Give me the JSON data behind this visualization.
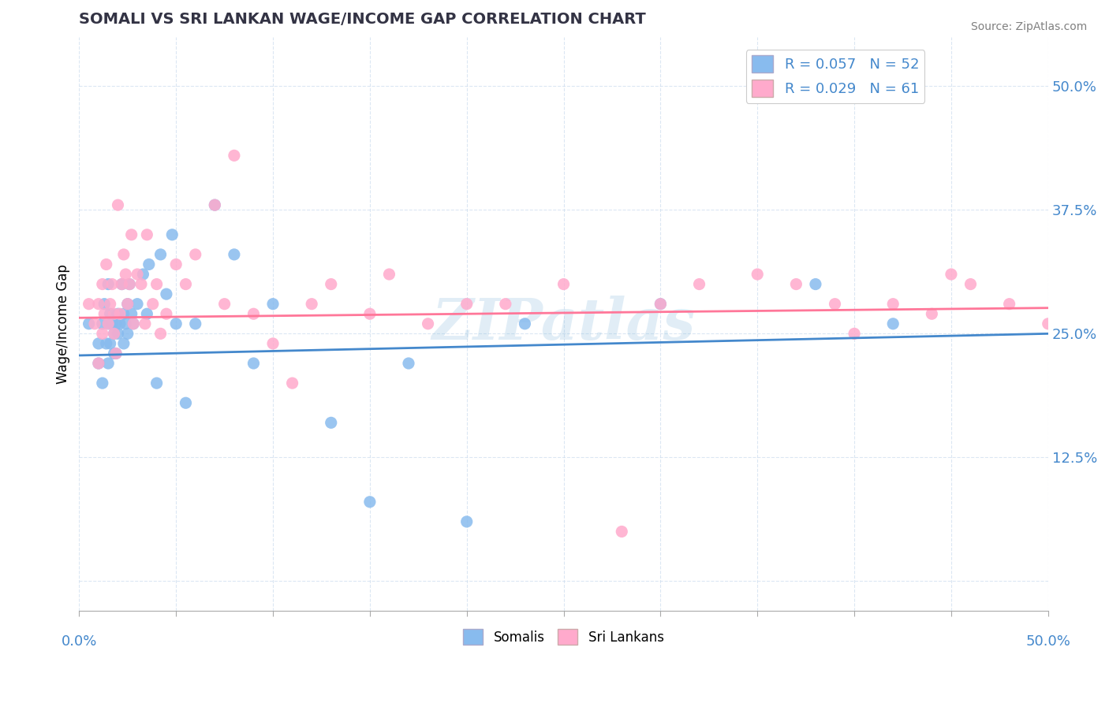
{
  "title": "SOMALI VS SRI LANKAN WAGE/INCOME GAP CORRELATION CHART",
  "source": "Source: ZipAtlas.com",
  "ylabel": "Wage/Income Gap",
  "ytick_labels": [
    "",
    "12.5%",
    "25.0%",
    "37.5%",
    "50.0%"
  ],
  "ytick_values": [
    0,
    0.125,
    0.25,
    0.375,
    0.5
  ],
  "xlim": [
    0.0,
    0.5
  ],
  "ylim": [
    -0.03,
    0.55
  ],
  "somali_color": "#88bbee",
  "srilanka_color": "#ffaacc",
  "somali_line_color": "#4488cc",
  "srilanka_line_color": "#ff7799",
  "watermark": "ZIPatlas",
  "legend_label1": "R = 0.057   N = 52",
  "legend_label2": "R = 0.029   N = 61",
  "somali_intercept": 0.228,
  "somali_slope": 0.044,
  "srilanka_intercept": 0.266,
  "srilanka_slope": 0.02,
  "somali_x": [
    0.005,
    0.01,
    0.01,
    0.012,
    0.012,
    0.013,
    0.014,
    0.015,
    0.015,
    0.015,
    0.016,
    0.016,
    0.017,
    0.018,
    0.018,
    0.019,
    0.019,
    0.02,
    0.02,
    0.021,
    0.022,
    0.023,
    0.023,
    0.024,
    0.025,
    0.025,
    0.026,
    0.027,
    0.028,
    0.03,
    0.033,
    0.035,
    0.036,
    0.04,
    0.042,
    0.045,
    0.048,
    0.05,
    0.055,
    0.06,
    0.07,
    0.08,
    0.09,
    0.1,
    0.13,
    0.15,
    0.17,
    0.2,
    0.23,
    0.3,
    0.38,
    0.42
  ],
  "somali_y": [
    0.26,
    0.24,
    0.22,
    0.2,
    0.26,
    0.28,
    0.24,
    0.26,
    0.22,
    0.3,
    0.24,
    0.27,
    0.26,
    0.23,
    0.25,
    0.26,
    0.23,
    0.27,
    0.25,
    0.26,
    0.3,
    0.24,
    0.27,
    0.26,
    0.28,
    0.25,
    0.3,
    0.27,
    0.26,
    0.28,
    0.31,
    0.27,
    0.32,
    0.2,
    0.33,
    0.29,
    0.35,
    0.26,
    0.18,
    0.26,
    0.38,
    0.33,
    0.22,
    0.28,
    0.16,
    0.08,
    0.22,
    0.06,
    0.26,
    0.28,
    0.3,
    0.26
  ],
  "srilanka_x": [
    0.005,
    0.008,
    0.01,
    0.01,
    0.012,
    0.012,
    0.013,
    0.014,
    0.015,
    0.016,
    0.017,
    0.018,
    0.018,
    0.019,
    0.02,
    0.021,
    0.022,
    0.023,
    0.024,
    0.025,
    0.026,
    0.027,
    0.028,
    0.03,
    0.032,
    0.034,
    0.035,
    0.038,
    0.04,
    0.042,
    0.045,
    0.05,
    0.055,
    0.06,
    0.07,
    0.075,
    0.08,
    0.09,
    0.1,
    0.11,
    0.12,
    0.13,
    0.15,
    0.16,
    0.18,
    0.2,
    0.22,
    0.25,
    0.28,
    0.3,
    0.32,
    0.35,
    0.37,
    0.39,
    0.4,
    0.42,
    0.44,
    0.45,
    0.46,
    0.48,
    0.5
  ],
  "srilanka_y": [
    0.28,
    0.26,
    0.28,
    0.22,
    0.3,
    0.25,
    0.27,
    0.32,
    0.26,
    0.28,
    0.3,
    0.25,
    0.27,
    0.23,
    0.38,
    0.27,
    0.3,
    0.33,
    0.31,
    0.28,
    0.3,
    0.35,
    0.26,
    0.31,
    0.3,
    0.26,
    0.35,
    0.28,
    0.3,
    0.25,
    0.27,
    0.32,
    0.3,
    0.33,
    0.38,
    0.28,
    0.43,
    0.27,
    0.24,
    0.2,
    0.28,
    0.3,
    0.27,
    0.31,
    0.26,
    0.28,
    0.28,
    0.3,
    0.05,
    0.28,
    0.3,
    0.31,
    0.3,
    0.28,
    0.25,
    0.28,
    0.27,
    0.31,
    0.3,
    0.28,
    0.26
  ]
}
